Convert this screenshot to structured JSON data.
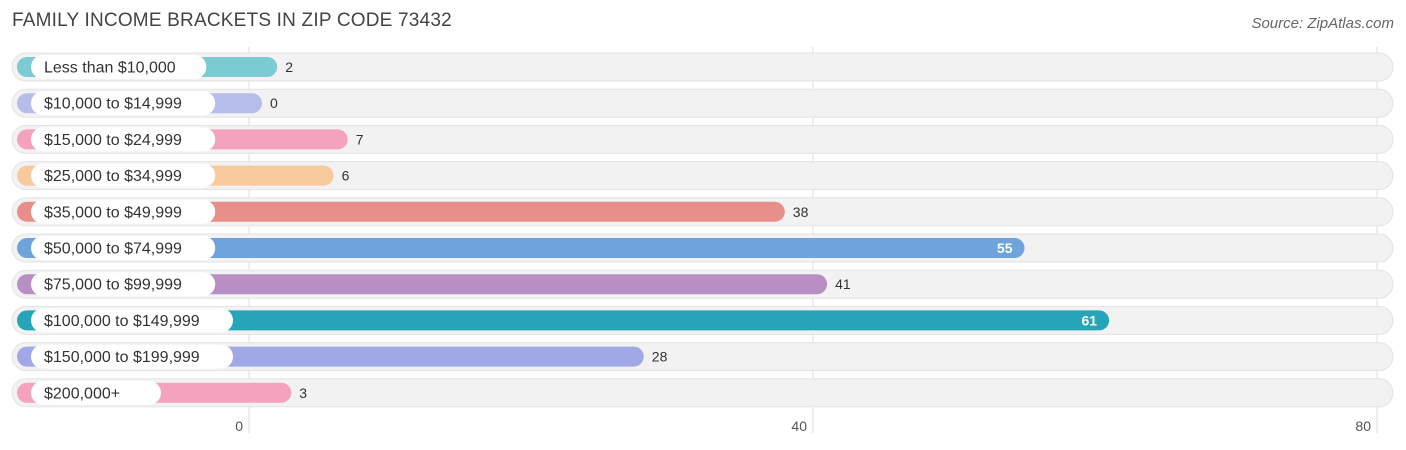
{
  "header": {
    "title": "FAMILY INCOME BRACKETS IN ZIP CODE 73432",
    "source": "Source: ZipAtlas.com"
  },
  "chart_data": {
    "type": "bar",
    "orientation": "horizontal",
    "title": "FAMILY INCOME BRACKETS IN ZIP CODE 73432",
    "xlabel": "",
    "ylabel": "",
    "xlim": [
      0,
      80
    ],
    "xticks": [
      0,
      40,
      80
    ],
    "grid": true,
    "categories": [
      "Less than $10,000",
      "$10,000 to $14,999",
      "$15,000 to $24,999",
      "$25,000 to $34,999",
      "$35,000 to $49,999",
      "$50,000 to $74,999",
      "$75,000 to $99,999",
      "$100,000 to $149,999",
      "$150,000 to $199,999",
      "$200,000+"
    ],
    "values": [
      2,
      0,
      7,
      6,
      38,
      55,
      41,
      61,
      28,
      3
    ],
    "colors": [
      "#7ccbd2",
      "#b6bdeb",
      "#f4a2be",
      "#f8c99d",
      "#e88f8a",
      "#6fa3dc",
      "#b88fc3",
      "#26a5b8",
      "#a1a8e6",
      "#f4a2be"
    ],
    "track_color": "#efefef"
  }
}
